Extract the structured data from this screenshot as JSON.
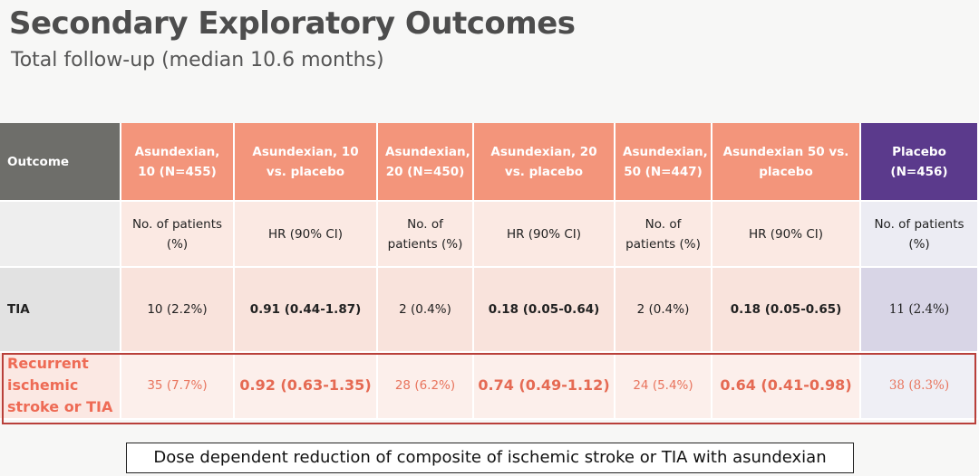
{
  "title": "Secondary Exploratory Outcomes",
  "subtitle": "Total follow-up (median 10.6 months)",
  "table": {
    "headers": [
      "Outcome",
      "Asundexian, 10 (N=455)",
      "Asundexian, 10 vs. placebo",
      "Asundexian, 20 (N=450)",
      "Asundexian, 20 vs. placebo",
      "Asundexian, 50 (N=447)",
      "Asundexian 50 vs. placebo",
      "Placebo (N=456)"
    ],
    "units": [
      "",
      "No. of patients (%)",
      "HR (90% CI)",
      "No. of patients (%)",
      "HR (90% CI)",
      "No. of patients (%)",
      "HR (90% CI)",
      "No. of patients (%)"
    ],
    "rows": [
      {
        "label": "TIA",
        "cells": [
          "10 (2.2%)",
          "0.91 (0.44-1.87)",
          "2 (0.4%)",
          "0.18 (0.05-0.64)",
          "2 (0.4%)",
          "0.18 (0.05-0.65)",
          "11 (2.4%)"
        ]
      },
      {
        "label": "Recurrent ischemic stroke or TIA",
        "cells": [
          "35 (7.7%)",
          "0.92 (0.63-1.35)",
          "28 (6.2%)",
          "0.74 (0.49-1.12)",
          "24 (5.4%)",
          "0.64 (0.41-0.98)",
          "38 (8.3%)"
        ]
      }
    ]
  },
  "footnote": "Dose dependent reduction of composite of ischemic stroke or TIA with asundexian",
  "colors": {
    "header_salmon": "#f3957b",
    "header_outcome": "#6e6e6a",
    "header_placebo": "#5b3a8c",
    "highlight_red": "#b9403a"
  }
}
